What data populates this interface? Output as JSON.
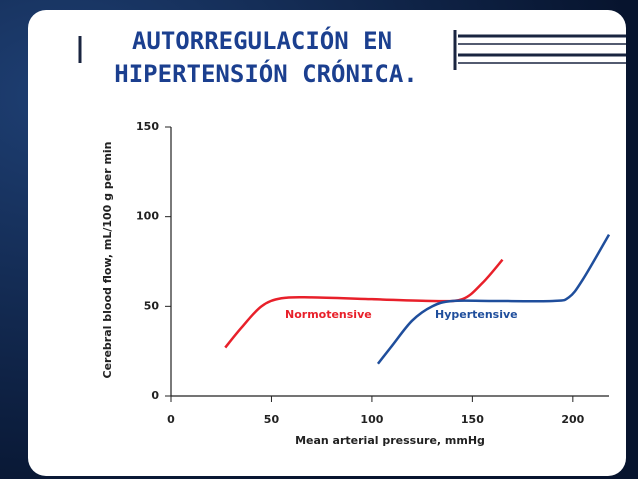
{
  "slide": {
    "title_lines": [
      "AUTORREGULACIÓN EN",
      "HIPERTENSIÓN CRÓNICA."
    ]
  },
  "chart_data": {
    "type": "line",
    "xlabel": "Mean arterial pressure, mmHg",
    "ylabel": "Cerebral blood flow, mL/100 g per min",
    "xlim": [
      0,
      218
    ],
    "ylim": [
      0,
      150
    ],
    "xticks": [
      0,
      50,
      100,
      150,
      200
    ],
    "yticks": [
      0,
      50,
      100,
      150
    ],
    "series": [
      {
        "name": "Normotensive",
        "color": "#e8202a",
        "x": [
          27,
          35,
          45,
          55,
          70,
          100,
          130,
          145,
          155,
          165
        ],
        "values": [
          27,
          38,
          50,
          54.5,
          55,
          54,
          53,
          54,
          63,
          76
        ]
      },
      {
        "name": "Hypertensive",
        "color": "#1f4e9c",
        "x": [
          103,
          110,
          120,
          130,
          140,
          160,
          190,
          198,
          205,
          218
        ],
        "values": [
          18,
          28,
          42,
          50,
          53,
          53,
          53,
          55,
          65,
          90
        ]
      }
    ]
  }
}
